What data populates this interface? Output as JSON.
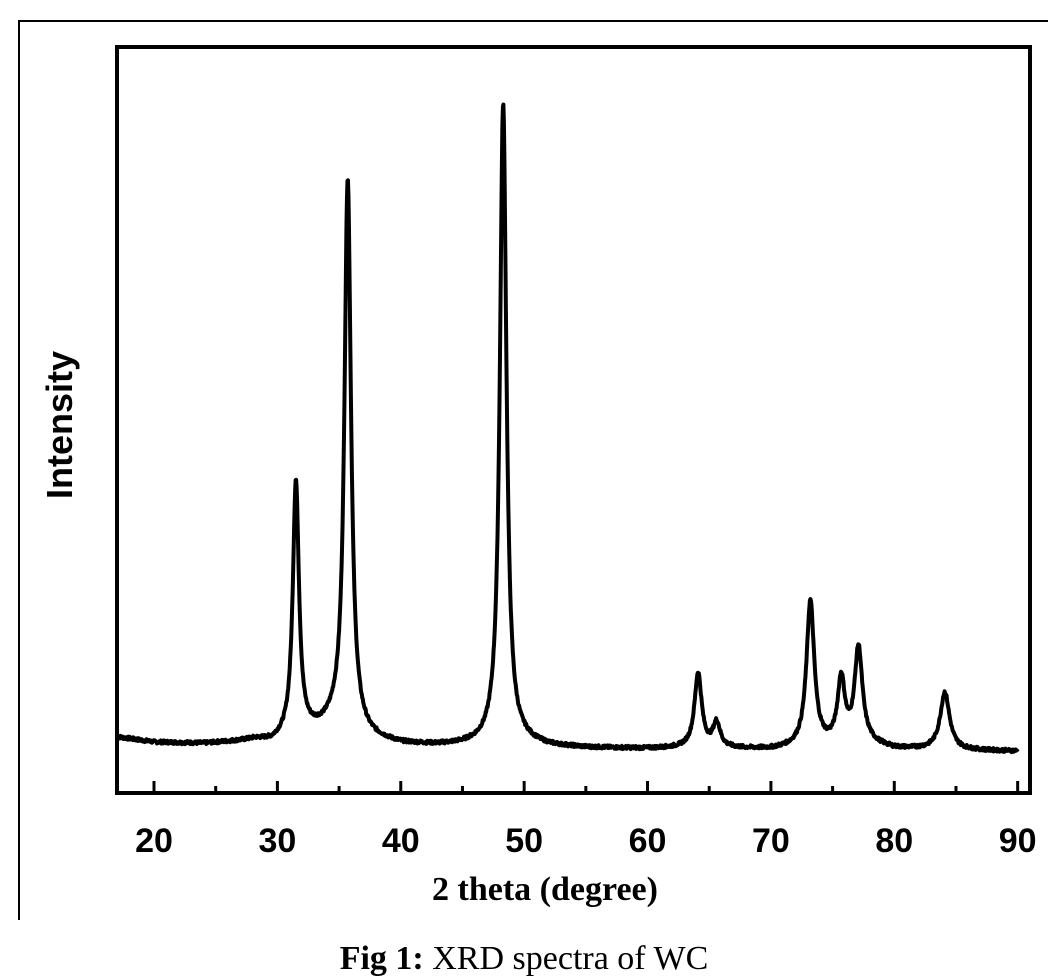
{
  "caption": {
    "label": "Fig 1:",
    "text": " XRD spectra of WC"
  },
  "chart_data": {
    "type": "line",
    "title": "",
    "xlabel": "2 theta (degree)",
    "ylabel": "Intensity",
    "xlim": [
      17,
      91
    ],
    "ylim": [
      0,
      100
    ],
    "xticks": [
      20,
      30,
      40,
      50,
      60,
      70,
      80,
      90
    ],
    "xtick_labels": [
      "20",
      "30",
      "40",
      "50",
      "60",
      "70",
      "80",
      "90"
    ],
    "grid": false,
    "legend": "none",
    "line_color": "#000000",
    "baseline": [
      [
        17,
        7.5
      ],
      [
        20,
        6.8
      ],
      [
        24,
        6.6
      ],
      [
        27,
        6.9
      ],
      [
        28.2,
        7.1
      ],
      [
        29.5,
        6.8
      ],
      [
        30.6,
        7.3
      ],
      [
        33.5,
        8.4
      ],
      [
        34.6,
        9.0
      ],
      [
        37.5,
        7.2
      ],
      [
        40,
        6.5
      ],
      [
        43,
        6.3
      ],
      [
        47,
        6.4
      ],
      [
        50,
        6.6
      ],
      [
        52,
        6.2
      ],
      [
        55,
        6.0
      ],
      [
        60,
        5.9
      ],
      [
        63,
        6.0
      ],
      [
        67,
        5.9
      ],
      [
        70,
        5.8
      ],
      [
        72,
        6.0
      ],
      [
        75,
        6.3
      ],
      [
        78,
        6.5
      ],
      [
        80,
        5.9
      ],
      [
        83,
        5.8
      ],
      [
        86,
        5.7
      ],
      [
        90,
        5.6
      ]
    ],
    "peaks": [
      {
        "x": 31.5,
        "height": 34.0,
        "width": 0.3
      },
      {
        "x": 35.7,
        "height": 74.0,
        "width": 0.32
      },
      {
        "x": 48.3,
        "height": 86.0,
        "width": 0.32
      },
      {
        "x": 64.1,
        "height": 10.0,
        "width": 0.35
      },
      {
        "x": 65.6,
        "height": 3.3,
        "width": 0.35
      },
      {
        "x": 73.2,
        "height": 19.5,
        "width": 0.38
      },
      {
        "x": 75.7,
        "height": 8.6,
        "width": 0.35
      },
      {
        "x": 77.1,
        "height": 12.8,
        "width": 0.38
      },
      {
        "x": 84.1,
        "height": 7.7,
        "width": 0.45
      }
    ]
  }
}
